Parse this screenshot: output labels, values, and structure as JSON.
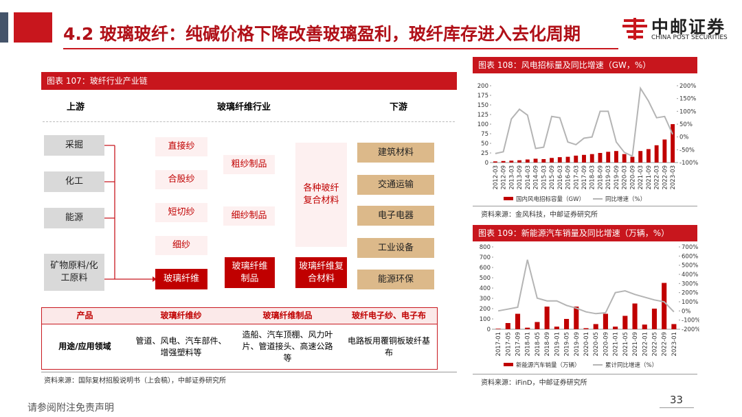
{
  "header": {
    "title": "4.2 玻璃玻纤：纯碱价格下降改善玻璃盈利，玻纤库存进入去化周期",
    "logo_cn": "中邮证券",
    "logo_en": "CHINA POST SECURITIES"
  },
  "figure107": {
    "caption": "图表 107：玻纤行业产业链",
    "headings": [
      "上游",
      "玻璃纤维行业",
      "下游"
    ],
    "upstream": [
      "采掘",
      "化工",
      "能源",
      "矿物原料/化工原料"
    ],
    "yarns": [
      "直接纱",
      "合股纱",
      "短切纱",
      "细纱"
    ],
    "products": [
      "粗纱制品",
      "细纱制品"
    ],
    "composites": "各种玻纤复合材料",
    "core": [
      "玻璃纤维",
      "玻璃纤维制品",
      "玻璃纤维复合材料"
    ],
    "downstream": [
      "建筑材料",
      "交通运输",
      "电子电器",
      "工业设备",
      "能源环保"
    ],
    "table": {
      "header": [
        "产品",
        "玻璃纤维纱",
        "玻璃纤维制品",
        "玻纤电子纱、电子布"
      ],
      "row": [
        "用途/应用领域",
        "管道、风电、汽车部件、增强塑料等",
        "造船、汽车顶棚、风力叶片、管道接头、高速公路等",
        "电路板用覆铜板玻纤基布"
      ]
    },
    "source": "资料来源：国际复材招股说明书（上会稿），中邮证券研究所"
  },
  "chart_data": [
    {
      "type": "bar",
      "title": "图表 108：风电招标量及同比增速（GW，%）",
      "note": "资料来源：金风科技，中邮证券研究所",
      "categories": [
        "2012-03",
        "2012-09",
        "2013-03",
        "2013-09",
        "2014-03",
        "2014-09",
        "2015-03",
        "2015-09",
        "2016-03",
        "2016-09",
        "2017-03",
        "2017-09",
        "2018-03",
        "2018-09",
        "2019-03",
        "2019-09",
        "2020-03",
        "2020-09",
        "2021-03",
        "2021-09",
        "2022-03",
        "2022-09",
        "2023-03"
      ],
      "series": [
        {
          "name": "国内风电招标容量（GW）",
          "type": "bar",
          "color": "#c00000",
          "values": [
            3,
            4,
            5,
            6,
            8,
            10,
            9,
            12,
            14,
            15,
            18,
            20,
            22,
            25,
            28,
            30,
            22,
            15,
            30,
            35,
            45,
            60,
            100
          ]
        },
        {
          "name": "同比增速（%）",
          "type": "line",
          "axis": "y2",
          "color": "#b4b4b4",
          "values": [
            -65,
            -58,
            70,
            108,
            85,
            -45,
            -40,
            80,
            75,
            -20,
            -30,
            -5,
            0,
            100,
            100,
            -20,
            -60,
            -75,
            190,
            140,
            75,
            80,
            10
          ]
        }
      ],
      "ylim": [
        0,
        200
      ],
      "yticks": [
        0,
        25,
        50,
        75,
        100,
        125,
        150,
        175,
        200
      ],
      "y2lim": [
        -100,
        200
      ],
      "y2ticks": [
        {
          "value": -100,
          "label": "-100%"
        },
        {
          "value": -50,
          "label": "-50%"
        },
        {
          "value": 0,
          "label": "0%"
        },
        {
          "value": 50,
          "label": "50%"
        },
        {
          "value": 100,
          "label": "100%"
        },
        {
          "value": 150,
          "label": "150%"
        },
        {
          "value": 200,
          "label": "200%"
        }
      ]
    },
    {
      "type": "bar",
      "title": "图表 109：新能源汽车销量及同比增速（万辆，%）",
      "note": "资料来源：iFinD，中邮证券研究所",
      "categories": [
        "2017-01",
        "2017-05",
        "2017-09",
        "2018-01",
        "2018-05",
        "2018-09",
        "2019-01",
        "2019-05",
        "2019-09",
        "2020-01",
        "2020-05",
        "2020-09",
        "2021-01",
        "2021-05",
        "2021-09",
        "2022-01",
        "2022-05",
        "2022-09",
        "2023-01"
      ],
      "series": [
        {
          "name": "新能源汽车销量（万辆）",
          "type": "bar",
          "color": "#c00000",
          "values": [
            5,
            60,
            150,
            15,
            70,
            220,
            25,
            100,
            220,
            10,
            50,
            150,
            25,
            130,
            250,
            45,
            200,
            450,
            50
          ]
        },
        {
          "name": "累计同比增速（%）",
          "type": "line",
          "axis": "y2",
          "color": "#b4b4b4",
          "values": [
            0,
            20,
            40,
            560,
            140,
            110,
            110,
            60,
            30,
            -10,
            -30,
            -20,
            200,
            220,
            180,
            150,
            120,
            100,
            -10
          ]
        }
      ],
      "ylim": [
        0,
        800
      ],
      "yticks": [
        0,
        100,
        200,
        300,
        400,
        500,
        600,
        700,
        800
      ],
      "y2lim": [
        -200,
        700
      ],
      "y2ticks": [
        {
          "value": -200,
          "label": "-200%"
        },
        {
          "value": -100,
          "label": "-100%"
        },
        {
          "value": 0,
          "label": "0%"
        },
        {
          "value": 100,
          "label": "100%"
        },
        {
          "value": 200,
          "label": "200%"
        },
        {
          "value": 300,
          "label": "300%"
        },
        {
          "value": 400,
          "label": "400%"
        },
        {
          "value": 500,
          "label": "500%"
        },
        {
          "value": 600,
          "label": "600%"
        },
        {
          "value": 700,
          "label": "700%"
        }
      ]
    }
  ],
  "footer": {
    "disclaimer": "请参阅附注免责声明",
    "page": "33"
  }
}
